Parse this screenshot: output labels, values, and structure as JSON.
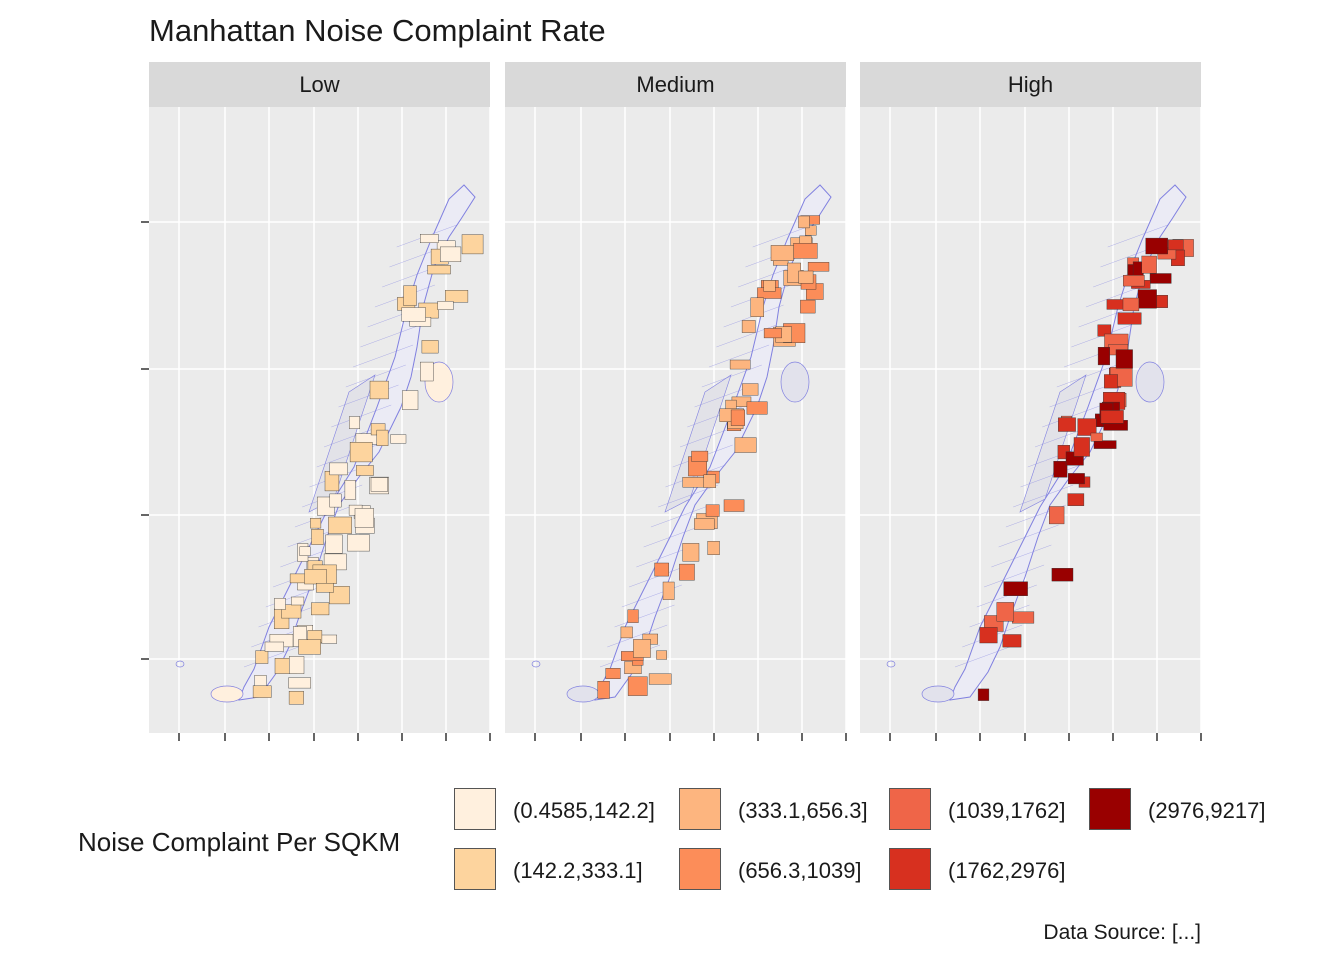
{
  "title": "Manhattan Noise Complaint Rate",
  "facets": [
    {
      "label": "Low",
      "fill": "#fcefdc",
      "categories": [
        0,
        1
      ]
    },
    {
      "label": "Medium",
      "fill": "#fb8c5a",
      "categories": [
        2,
        3
      ]
    },
    {
      "label": "High",
      "fill": "#d42f20",
      "categories": [
        4,
        5,
        6
      ]
    }
  ],
  "legend": {
    "title": "Noise Complaint Per SQKM",
    "items": [
      {
        "label": "(0.4585,142.2]",
        "color": "#fff0de"
      },
      {
        "label": "(142.2,333.1]",
        "color": "#fdd49e"
      },
      {
        "label": "(333.1,656.3]",
        "color": "#fdb57f"
      },
      {
        "label": "(656.3,1039]",
        "color": "#fc8d59"
      },
      {
        "label": "(1039,1762]",
        "color": "#ef6548"
      },
      {
        "label": "(1762,2976]",
        "color": "#d7301f"
      },
      {
        "label": "(2976,9217]",
        "color": "#990000"
      }
    ]
  },
  "colors": {
    "panel_background": "#ebebeb",
    "strip_background": "#d9d9d9",
    "gridline": "#ffffff",
    "tract_outline": "#8080e0"
  },
  "caption": "Data Source: [...]"
}
